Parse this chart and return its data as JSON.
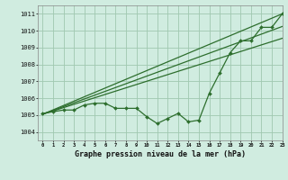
{
  "title": "Graphe pression niveau de la mer (hPa)",
  "background_color": "#d0ece0",
  "grid_color": "#a0c8b0",
  "line_color": "#2d6e2d",
  "xlim": [
    -0.5,
    23
  ],
  "ylim": [
    1003.5,
    1011.5
  ],
  "yticks": [
    1004,
    1005,
    1006,
    1007,
    1008,
    1009,
    1010,
    1011
  ],
  "xticks": [
    0,
    1,
    2,
    3,
    4,
    5,
    6,
    7,
    8,
    9,
    10,
    11,
    12,
    13,
    14,
    15,
    16,
    17,
    18,
    19,
    20,
    21,
    22,
    23
  ],
  "main_x": [
    0,
    1,
    2,
    3,
    4,
    5,
    6,
    7,
    8,
    9,
    10,
    11,
    12,
    13,
    14,
    15,
    16,
    17,
    18,
    19,
    20,
    21,
    22,
    23
  ],
  "main_y": [
    1005.1,
    1005.2,
    1005.3,
    1005.3,
    1005.6,
    1005.7,
    1005.7,
    1005.4,
    1005.4,
    1005.4,
    1004.9,
    1004.5,
    1004.8,
    1005.1,
    1004.6,
    1004.7,
    1006.3,
    1007.5,
    1008.7,
    1009.4,
    1009.4,
    1010.2,
    1010.2,
    1011.0
  ],
  "trend1_x": [
    0,
    23
  ],
  "trend1_y": [
    1005.05,
    1011.0
  ],
  "trend2_x": [
    0,
    23
  ],
  "trend2_y": [
    1005.05,
    1010.25
  ],
  "trend3_x": [
    0,
    23
  ],
  "trend3_y": [
    1005.05,
    1009.55
  ]
}
